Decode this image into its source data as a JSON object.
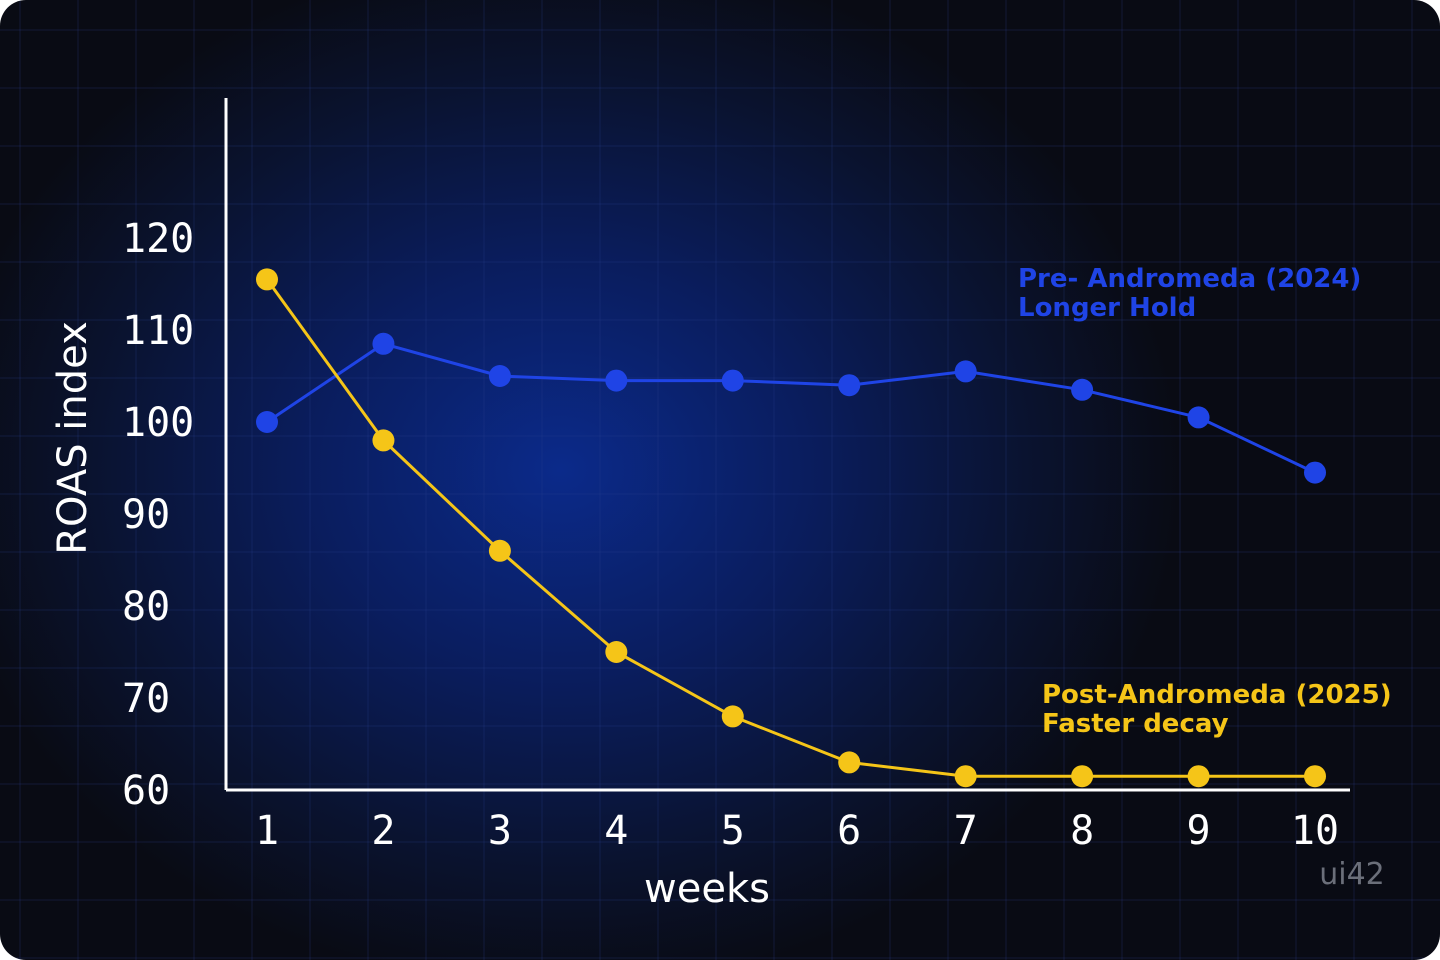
{
  "chart_data": {
    "type": "line",
    "x": [
      1,
      2,
      3,
      4,
      5,
      6,
      7,
      8,
      9,
      10
    ],
    "xlabel": "weeks",
    "ylabel": "ROAS index",
    "ylim": [
      60,
      130
    ],
    "yticks": [
      60,
      70,
      80,
      90,
      100,
      110,
      120
    ],
    "grid": true,
    "series": [
      {
        "name_lines": [
          "Pre- Andromeda (2024)",
          "Longer Hold"
        ],
        "color": "#1f44e6",
        "values": [
          100,
          108.5,
          105,
          104.5,
          104.5,
          104,
          105.5,
          103.5,
          100.5,
          94.5
        ]
      },
      {
        "name_lines": [
          "Post-Andromeda (2025)",
          "Faster decay"
        ],
        "color": "#f5c518",
        "values": [
          115.5,
          98,
          86,
          75,
          68,
          63,
          61.5,
          61.5,
          61.5,
          61.5
        ]
      }
    ]
  },
  "watermark": "ui42"
}
